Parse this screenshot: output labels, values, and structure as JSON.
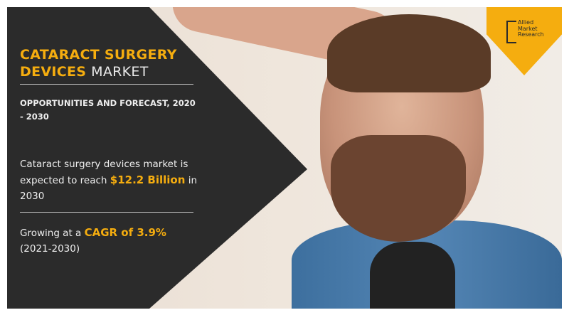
{
  "title": {
    "highlight_line1": "CATARACT SURGERY",
    "highlight_line2": "DEVICES",
    "plain": "MARKET"
  },
  "subtitle": "OPPORTUNITIES AND FORECAST, 2020 - 2030",
  "stat1": {
    "pre": "Cataract surgery devices market is expected to reach ",
    "value": "$12.2 Billion",
    "post": " in 2030"
  },
  "stat2": {
    "pre": "Growing at a ",
    "value": "CAGR of 3.9%",
    "post": "(2021-2030)"
  },
  "logo": {
    "line1": "Allied",
    "line2": "Market",
    "line3": "Research"
  },
  "colors": {
    "accent": "#f5ad0f",
    "panel": "#2b2b2b"
  }
}
